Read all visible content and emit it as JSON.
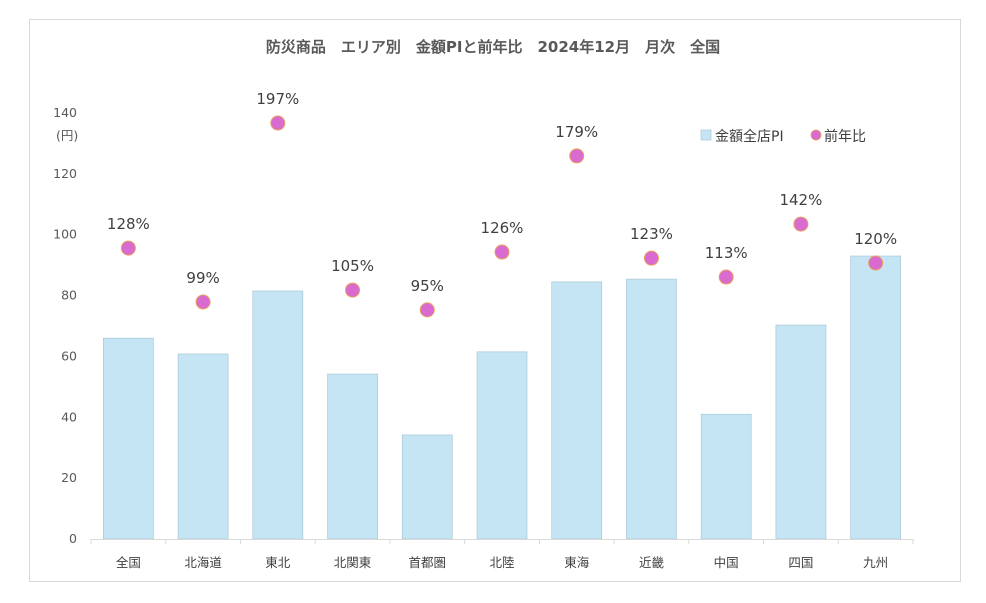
{
  "chart_data": {
    "type": "bar",
    "title": "防災商品　エリア別　金額PIと前年比　2024年12月　月次　全国",
    "ylabel": "(円)",
    "ylim": [
      0,
      140
    ],
    "yticks": [
      0,
      20,
      40,
      60,
      80,
      100,
      120,
      140
    ],
    "grid": false,
    "legend_position": "top-right",
    "categories": [
      "全国",
      "北海道",
      "東北",
      "北関東",
      "首都圏",
      "北陸",
      "東海",
      "近畿",
      "中国",
      "四国",
      "九州"
    ],
    "series": [
      {
        "name": "金額全店PI",
        "type": "bar",
        "color": "#c5e5f5",
        "values": [
          66,
          60.8,
          81.5,
          54.2,
          34.2,
          61.5,
          84.5,
          85.4,
          41,
          70.3,
          93
        ]
      },
      {
        "name": "前年比",
        "type": "scatter",
        "color": "#d96ad0",
        "values": [
          95.6,
          77.9,
          136.7,
          81.8,
          75.3,
          94.3,
          125.9,
          92.3,
          86.1,
          103.5,
          90.7
        ],
        "labels": [
          "128%",
          "99%",
          "197%",
          "105%",
          "95%",
          "126%",
          "179%",
          "123%",
          "113%",
          "142%",
          "120%"
        ]
      }
    ]
  }
}
